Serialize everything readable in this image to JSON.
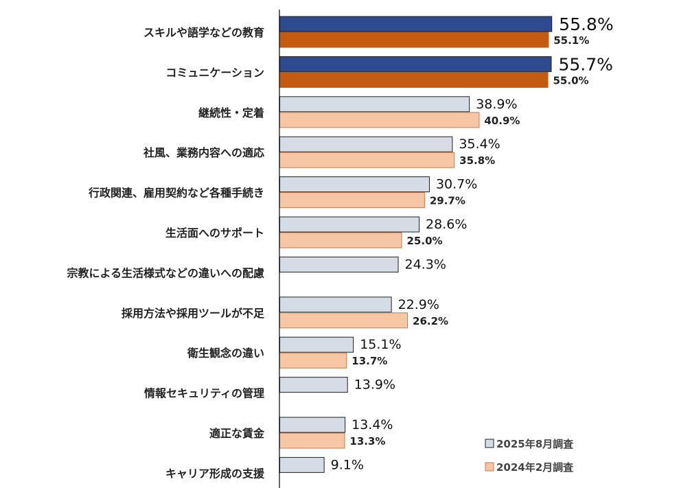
{
  "chart_data": {
    "type": "bar",
    "orientation": "horizontal",
    "categories": [
      "スキルや語学などの教育",
      "コミュニケーション",
      "継続性・定着",
      "社風、業務内容への適応",
      "行政関連、雇用契約など各種手続き",
      "生活面へのサポート",
      "宗教による生活様式などの違いへの配慮",
      "採用方法や採用ツールが不足",
      "衛生観念の違い",
      "情報セキュリティの管理",
      "適正な賃金",
      "キャリア形成の支援"
    ],
    "series": [
      {
        "name": "2025年8月調査",
        "values": [
          55.8,
          55.7,
          38.9,
          35.4,
          30.7,
          28.6,
          24.3,
          22.9,
          15.1,
          13.9,
          13.4,
          9.1
        ],
        "labels": [
          "55.8%",
          "55.7%",
          "38.9%",
          "35.4%",
          "30.7%",
          "28.6%",
          "24.3%",
          "22.9%",
          "15.1%",
          "13.9%",
          "13.4%",
          "9.1%"
        ],
        "color": "#d6dce5",
        "highlight_color": "#2f4b8f"
      },
      {
        "name": "2024年2月調査",
        "values": [
          55.1,
          55.0,
          40.9,
          35.8,
          29.7,
          25.0,
          null,
          26.2,
          13.7,
          null,
          13.3,
          null
        ],
        "labels": [
          "55.1%",
          "55.0%",
          "40.9%",
          "35.8%",
          "29.7%",
          "25.0%",
          null,
          "26.2%",
          "13.7%",
          null,
          "13.3%",
          null
        ],
        "color": "#f7c6a5",
        "highlight_color": "#c55a11"
      }
    ],
    "highlight_top_n": 2,
    "xlim": [
      0,
      100
    ],
    "grid": false,
    "legend_position": "bottom-right",
    "title": "",
    "xlabel": "",
    "ylabel": ""
  }
}
